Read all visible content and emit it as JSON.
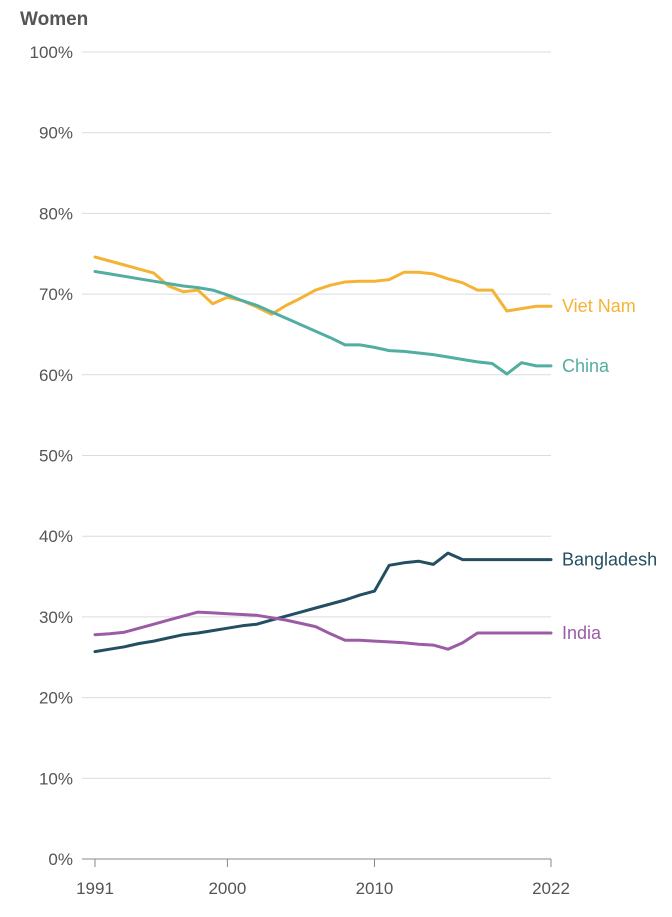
{
  "chart_data": {
    "type": "line",
    "title": "Women",
    "xlabel": "",
    "ylabel": "",
    "xlim": [
      1991,
      2022
    ],
    "ylim": [
      0,
      100
    ],
    "y_ticks": [
      0,
      10,
      20,
      30,
      40,
      50,
      60,
      70,
      80,
      90,
      100
    ],
    "y_tick_labels": [
      "0%",
      "10%",
      "20%",
      "30%",
      "40%",
      "50%",
      "60%",
      "70%",
      "80%",
      "90%",
      "100%"
    ],
    "x_ticks": [
      1991,
      2000,
      2010,
      2022
    ],
    "x_tick_labels": [
      "1991",
      "2000",
      "2010",
      "2022"
    ],
    "grid": true,
    "series": [
      {
        "name": "Viet Nam",
        "color": "#f5b335",
        "x": [
          1991,
          1992,
          1993,
          1994,
          1995,
          1996,
          1997,
          1998,
          1999,
          2000,
          2001,
          2002,
          2003,
          2004,
          2005,
          2006,
          2007,
          2008,
          2009,
          2010,
          2011,
          2012,
          2013,
          2014,
          2015,
          2016,
          2017,
          2018,
          2019,
          2020,
          2021,
          2022
        ],
        "values": [
          74.6,
          74.1,
          73.6,
          73.1,
          72.6,
          71.0,
          70.3,
          70.5,
          68.8,
          69.6,
          69.2,
          68.4,
          67.5,
          68.6,
          69.5,
          70.5,
          71.1,
          71.5,
          71.6,
          71.6,
          71.8,
          72.7,
          72.7,
          72.5,
          71.9,
          71.4,
          70.5,
          70.5,
          67.9,
          68.2,
          68.5,
          68.5
        ],
        "label": "Viet Nam"
      },
      {
        "name": "China",
        "color": "#52aea0",
        "x": [
          1991,
          1992,
          1993,
          1994,
          1995,
          1996,
          1997,
          1998,
          1999,
          2000,
          2001,
          2002,
          2003,
          2004,
          2005,
          2006,
          2007,
          2008,
          2009,
          2010,
          2011,
          2012,
          2013,
          2014,
          2015,
          2016,
          2017,
          2018,
          2019,
          2020,
          2021,
          2022
        ],
        "values": [
          72.8,
          72.5,
          72.2,
          71.9,
          71.6,
          71.3,
          71.0,
          70.8,
          70.5,
          69.9,
          69.2,
          68.6,
          67.8,
          67.0,
          66.2,
          65.4,
          64.6,
          63.7,
          63.7,
          63.4,
          63.0,
          62.9,
          62.7,
          62.5,
          62.2,
          61.9,
          61.6,
          61.4,
          60.1,
          61.5,
          61.1,
          61.1
        ],
        "label": "China"
      },
      {
        "name": "Bangladesh",
        "color": "#244f63",
        "x": [
          1991,
          1992,
          1993,
          1994,
          1995,
          1996,
          1997,
          1998,
          1999,
          2000,
          2001,
          2002,
          2003,
          2004,
          2005,
          2006,
          2007,
          2008,
          2009,
          2010,
          2011,
          2012,
          2013,
          2014,
          2015,
          2016,
          2017,
          2018,
          2019,
          2020,
          2021,
          2022
        ],
        "values": [
          25.7,
          26.0,
          26.3,
          26.7,
          27.0,
          27.4,
          27.8,
          28.0,
          28.3,
          28.6,
          28.9,
          29.1,
          29.6,
          30.1,
          30.6,
          31.1,
          31.6,
          32.1,
          32.7,
          33.2,
          36.4,
          36.7,
          36.9,
          36.5,
          37.9,
          37.1,
          37.1,
          37.1,
          37.1,
          37.1,
          37.1,
          37.1
        ],
        "label": "Bangladesh"
      },
      {
        "name": "India",
        "color": "#9b5ba5",
        "x": [
          1991,
          1992,
          1993,
          1994,
          1995,
          1996,
          1997,
          1998,
          1999,
          2000,
          2001,
          2002,
          2003,
          2004,
          2005,
          2006,
          2007,
          2008,
          2009,
          2010,
          2011,
          2012,
          2013,
          2014,
          2015,
          2016,
          2017,
          2018,
          2019,
          2020,
          2021,
          2022
        ],
        "values": [
          27.8,
          27.9,
          28.1,
          28.6,
          29.1,
          29.6,
          30.1,
          30.6,
          30.5,
          30.4,
          30.3,
          30.2,
          29.9,
          29.6,
          29.2,
          28.8,
          27.9,
          27.1,
          27.1,
          27.0,
          26.9,
          26.8,
          26.6,
          26.5,
          26.0,
          26.8,
          28.0,
          28.0,
          28.0,
          28.0,
          28.0,
          28.0
        ],
        "label": "India"
      }
    ]
  }
}
